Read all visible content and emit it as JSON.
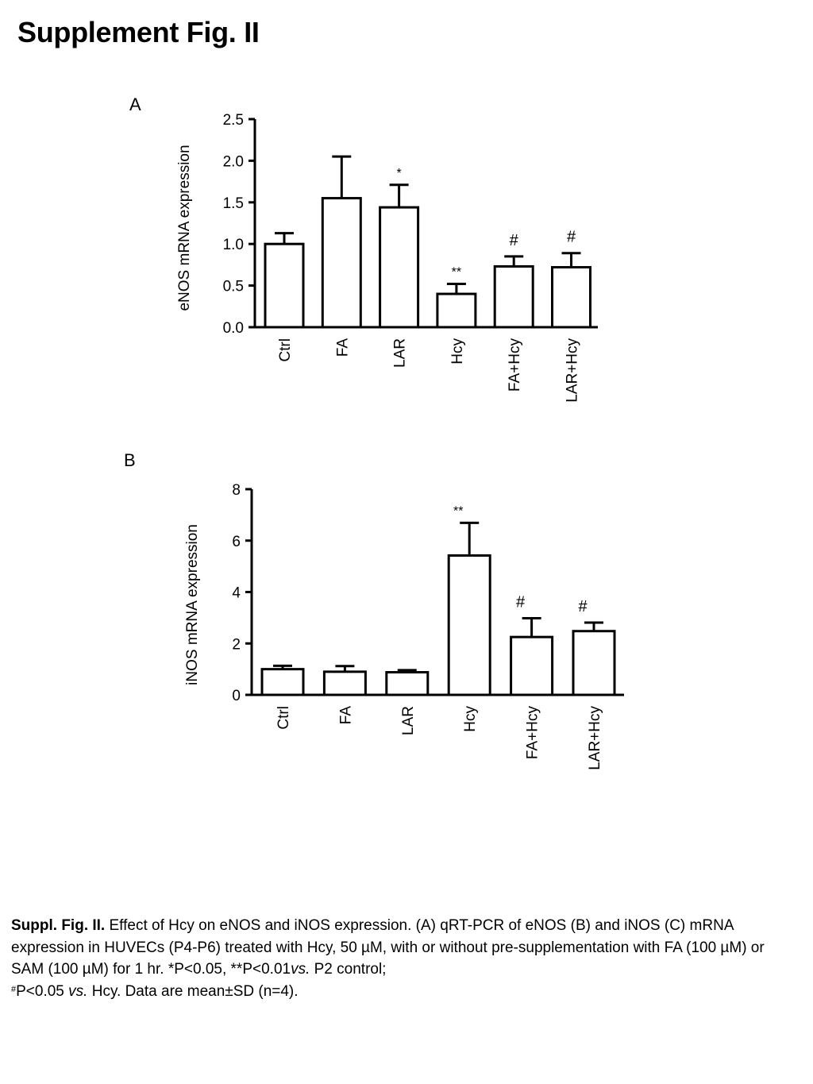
{
  "page_title": "Supplement Fig. II",
  "chart_data": [
    {
      "panel": "A",
      "type": "bar",
      "ylabel": "eNOS mRNA expression",
      "ylim": [
        0,
        2.5
      ],
      "yticks": [
        "0.0",
        "0.5",
        "1.0",
        "1.5",
        "2.0",
        "2.5"
      ],
      "categories": [
        "Ctrl",
        "FA",
        "LAR",
        "Hcy",
        "FA+Hcy",
        "LAR+Hcy"
      ],
      "values": [
        1.0,
        1.55,
        1.44,
        0.4,
        0.73,
        0.72
      ],
      "errors": [
        0.13,
        0.5,
        0.27,
        0.12,
        0.12,
        0.17
      ],
      "annotations": [
        "",
        "",
        "*",
        "**",
        "#",
        "#"
      ],
      "bar_color": "#ffffff",
      "edge_color": "#000000"
    },
    {
      "panel": "B",
      "type": "bar",
      "ylabel": "iNOS mRNA expression",
      "ylim": [
        0,
        8
      ],
      "yticks": [
        "0",
        "2",
        "4",
        "6",
        "8"
      ],
      "categories": [
        "Ctrl",
        "FA",
        "LAR",
        "Hcy",
        "FA+Hcy",
        "LAR+Hcy"
      ],
      "values": [
        1.0,
        0.9,
        0.88,
        5.42,
        2.25,
        2.48
      ],
      "errors": [
        0.13,
        0.22,
        0.08,
        1.27,
        0.73,
        0.33
      ],
      "annotations": [
        "",
        "",
        "",
        "**",
        "#",
        "#"
      ],
      "bar_color": "#ffffff",
      "edge_color": "#000000"
    }
  ],
  "caption": {
    "bold_lead": "Suppl. Fig. II.",
    "part1": " Effect of Hcy on eNOS and iNOS expression. (A) qRT-PCR of eNOS (B) and iNOS (C) mRNA expression in HUVECs (P4-P6) treated with Hcy, 50 µM, with or without pre-supplementation with FA (100 µM) or SAM (100 µM) for 1 hr. *P<0.05, **P<0.01",
    "vs1": "vs.",
    "part2": " P2 control;",
    "sup": "#",
    "part3": "P<0.05 ",
    "vs2": "vs.",
    "part4": " Hcy. Data are mean±SD (n=4)."
  }
}
